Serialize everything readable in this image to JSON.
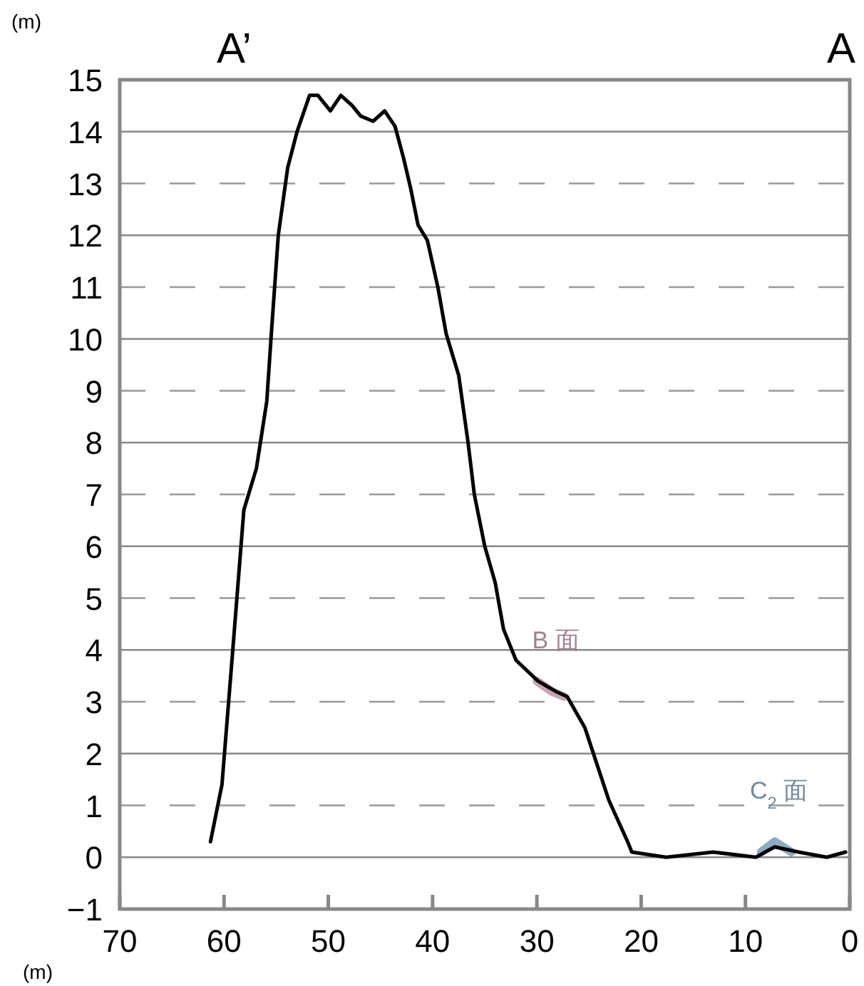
{
  "chart_data": {
    "type": "line",
    "xlabel": "(m)",
    "ylabel": "(m)",
    "annotations": [
      "A’",
      "A",
      "B 面",
      "C$_{2}$ 面"
    ],
    "xlim": [
      70,
      0
    ],
    "xticks": [
      70,
      60,
      50,
      40,
      30,
      20,
      10,
      0
    ],
    "ylim": [
      -1,
      15
    ],
    "yticks": [
      -1,
      0,
      1,
      2,
      3,
      4,
      5,
      6,
      7,
      8,
      9,
      10,
      11,
      12,
      13,
      14,
      15
    ],
    "grid": "y",
    "marker": "none",
    "line_style": "solid",
    "series": [
      {
        "color": "#000000",
        "x": [
          61.3,
          60.2,
          59.2,
          58.1,
          56.9,
          55.9,
          55.5,
          54.8,
          53.9,
          53.0,
          51.8,
          51.0,
          49.8,
          48.8,
          47.7,
          46.9,
          45.7,
          44.6,
          43.6,
          42.8,
          42.1,
          41.4,
          40.5,
          39.5,
          38.7,
          37.5,
          36.6,
          36.0,
          35.0,
          34.0,
          33.2,
          32.0,
          29.9,
          28.2,
          27.1,
          25.4,
          23.1,
          21.3,
          20.9,
          17.6,
          13.1,
          9.0,
          7.2,
          4.9,
          2.2,
          0.4
        ],
        "values": [
          0.3,
          1.4,
          3.9,
          6.7,
          7.5,
          8.8,
          10.0,
          12.0,
          13.3,
          14.0,
          14.7,
          14.7,
          14.4,
          14.7,
          14.5,
          14.3,
          14.2,
          14.4,
          14.1,
          13.5,
          12.9,
          12.2,
          11.9,
          11.0,
          10.1,
          9.3,
          8.0,
          7.0,
          6.0,
          5.3,
          4.4,
          3.8,
          3.4,
          3.2,
          3.1,
          2.5,
          1.1,
          0.3,
          0.1,
          0.0,
          0.1,
          0.0,
          0.2,
          0.1,
          0.0,
          0.1
        ]
      },
      {
        "color": "#c9a3b4",
        "x": [
          30.0,
          28.6,
          27.4
        ],
        "values": [
          3.4,
          3.2,
          3.1
        ]
      },
      {
        "color": "#8fabc4",
        "x": [
          8.5,
          7.2,
          5.6
        ],
        "values": [
          0.1,
          0.3,
          0.1
        ]
      }
    ]
  }
}
